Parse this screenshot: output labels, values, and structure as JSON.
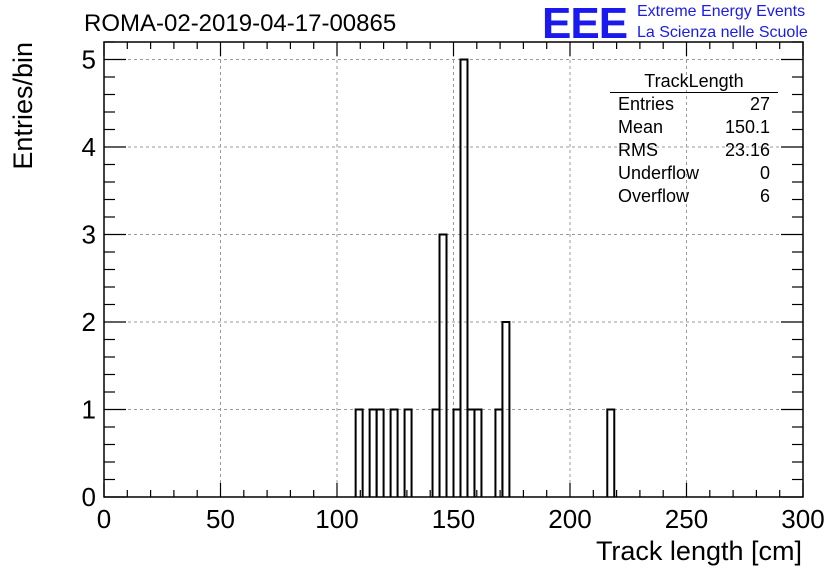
{
  "header": {
    "run_title": "ROMA-02-2019-04-17-00865",
    "logo": "EEE",
    "logo_line1": "Extreme Energy Events",
    "logo_line2": "La Scienza nelle Scuole",
    "logo_color": "#1a1aee"
  },
  "stats_box": {
    "title": "TrackLength",
    "rows": [
      {
        "label": "Entries",
        "value": "27"
      },
      {
        "label": "Mean",
        "value": "150.1"
      },
      {
        "label": "RMS",
        "value": "23.16"
      },
      {
        "label": "Underflow",
        "value": "0"
      },
      {
        "label": "Overflow",
        "value": "6"
      }
    ]
  },
  "chart_data": {
    "type": "bar",
    "histogram_style": "step",
    "xlabel": "Track length [cm]",
    "ylabel": "Entries/bin",
    "xlim": [
      0,
      300
    ],
    "ylim": [
      0,
      5.2
    ],
    "bin_width": 3,
    "x_ticks": [
      0,
      50,
      100,
      150,
      200,
      250,
      300
    ],
    "y_ticks": [
      0,
      1,
      2,
      3,
      4,
      5
    ],
    "grid": true,
    "bins": [
      {
        "x": 108,
        "value": 1
      },
      {
        "x": 114,
        "value": 1
      },
      {
        "x": 117,
        "value": 1
      },
      {
        "x": 123,
        "value": 1
      },
      {
        "x": 129,
        "value": 1
      },
      {
        "x": 141,
        "value": 1
      },
      {
        "x": 144,
        "value": 3
      },
      {
        "x": 150,
        "value": 1
      },
      {
        "x": 153,
        "value": 5
      },
      {
        "x": 156,
        "value": 1
      },
      {
        "x": 159,
        "value": 1
      },
      {
        "x": 168,
        "value": 1
      },
      {
        "x": 171,
        "value": 2
      },
      {
        "x": 216,
        "value": 1
      }
    ]
  }
}
